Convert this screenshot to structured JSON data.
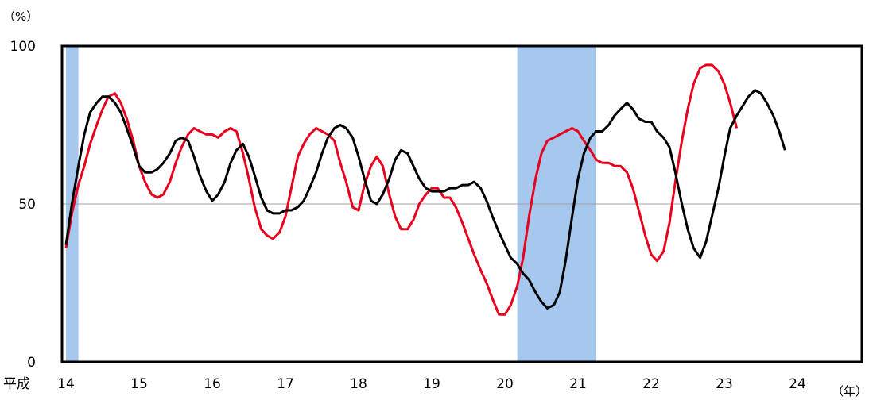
{
  "chart_data": {
    "type": "line",
    "title": "",
    "y_unit_label": "（%）",
    "x_unit_label": "（年）",
    "x_era_label": "平成",
    "xlabel": "",
    "ylabel": "",
    "ylim": [
      0,
      100
    ],
    "xlim": [
      14,
      25
    ],
    "y_ticks": [
      {
        "value": 0,
        "label": "0"
      },
      {
        "value": 50,
        "label": "50"
      },
      {
        "value": 100,
        "label": "100"
      }
    ],
    "x_ticks": [
      {
        "value": 14,
        "label": "14"
      },
      {
        "value": 15,
        "label": "15"
      },
      {
        "value": 16,
        "label": "16"
      },
      {
        "value": 17,
        "label": "17"
      },
      {
        "value": 18,
        "label": "18"
      },
      {
        "value": 19,
        "label": "19"
      },
      {
        "value": 20,
        "label": "20"
      },
      {
        "value": 21,
        "label": "21"
      },
      {
        "value": 22,
        "label": "22"
      },
      {
        "value": 23,
        "label": "23"
      },
      {
        "value": 24,
        "label": "24"
      }
    ],
    "grid": {
      "horizontal_at": [
        50
      ]
    },
    "legend": "none",
    "shaded_periods": [
      {
        "start": 14.0,
        "end": 14.17,
        "color": "#a6c8ee"
      },
      {
        "start": 20.17,
        "end": 21.25,
        "color": "#a6c8ee"
      }
    ],
    "series": [
      {
        "color": "#e8001c",
        "points": [
          [
            14.0,
            36
          ],
          [
            14.08,
            47
          ],
          [
            14.17,
            56
          ],
          [
            14.25,
            62
          ],
          [
            14.33,
            69
          ],
          [
            14.42,
            75
          ],
          [
            14.5,
            80
          ],
          [
            14.58,
            84
          ],
          [
            14.67,
            85
          ],
          [
            14.75,
            82
          ],
          [
            14.83,
            77
          ],
          [
            14.92,
            70
          ],
          [
            15.0,
            62
          ],
          [
            15.08,
            57
          ],
          [
            15.17,
            53
          ],
          [
            15.25,
            52
          ],
          [
            15.33,
            53
          ],
          [
            15.42,
            57
          ],
          [
            15.5,
            63
          ],
          [
            15.58,
            68
          ],
          [
            15.67,
            72
          ],
          [
            15.75,
            74
          ],
          [
            15.83,
            73
          ],
          [
            15.92,
            72
          ],
          [
            16.0,
            72
          ],
          [
            16.08,
            71
          ],
          [
            16.17,
            73
          ],
          [
            16.25,
            74
          ],
          [
            16.33,
            73
          ],
          [
            16.42,
            66
          ],
          [
            16.5,
            58
          ],
          [
            16.58,
            49
          ],
          [
            16.67,
            42
          ],
          [
            16.75,
            40
          ],
          [
            16.83,
            39
          ],
          [
            16.92,
            41
          ],
          [
            17.0,
            46
          ],
          [
            17.08,
            55
          ],
          [
            17.17,
            65
          ],
          [
            17.25,
            69
          ],
          [
            17.33,
            72
          ],
          [
            17.42,
            74
          ],
          [
            17.5,
            73
          ],
          [
            17.58,
            72
          ],
          [
            17.67,
            70
          ],
          [
            17.75,
            63
          ],
          [
            17.83,
            57
          ],
          [
            17.92,
            49
          ],
          [
            18.0,
            48
          ],
          [
            18.08,
            56
          ],
          [
            18.17,
            62
          ],
          [
            18.25,
            65
          ],
          [
            18.33,
            62
          ],
          [
            18.42,
            53
          ],
          [
            18.5,
            46
          ],
          [
            18.58,
            42
          ],
          [
            18.67,
            42
          ],
          [
            18.75,
            45
          ],
          [
            18.83,
            50
          ],
          [
            18.92,
            53
          ],
          [
            19.0,
            55
          ],
          [
            19.08,
            55
          ],
          [
            19.17,
            52
          ],
          [
            19.25,
            52
          ],
          [
            19.33,
            49
          ],
          [
            19.42,
            44
          ],
          [
            19.5,
            39
          ],
          [
            19.58,
            34
          ],
          [
            19.67,
            29
          ],
          [
            19.75,
            25
          ],
          [
            19.83,
            20
          ],
          [
            19.92,
            15
          ],
          [
            20.0,
            15
          ],
          [
            20.08,
            18
          ],
          [
            20.17,
            24
          ],
          [
            20.25,
            33
          ],
          [
            20.33,
            46
          ],
          [
            20.42,
            58
          ],
          [
            20.5,
            66
          ],
          [
            20.58,
            70
          ],
          [
            20.67,
            71
          ],
          [
            20.75,
            72
          ],
          [
            20.83,
            73
          ],
          [
            20.92,
            74
          ],
          [
            21.0,
            73
          ],
          [
            21.08,
            70
          ],
          [
            21.17,
            67
          ],
          [
            21.25,
            64
          ],
          [
            21.33,
            63
          ],
          [
            21.42,
            63
          ],
          [
            21.5,
            62
          ],
          [
            21.58,
            62
          ],
          [
            21.67,
            60
          ],
          [
            21.75,
            55
          ],
          [
            21.83,
            48
          ],
          [
            21.92,
            40
          ],
          [
            22.0,
            34
          ],
          [
            22.08,
            32
          ],
          [
            22.17,
            35
          ],
          [
            22.25,
            44
          ],
          [
            22.33,
            57
          ],
          [
            22.42,
            70
          ],
          [
            22.5,
            80
          ],
          [
            22.58,
            88
          ],
          [
            22.67,
            93
          ],
          [
            22.75,
            94
          ],
          [
            22.83,
            94
          ],
          [
            22.92,
            92
          ],
          [
            23.0,
            88
          ],
          [
            23.08,
            82
          ],
          [
            23.17,
            74
          ]
        ]
      },
      {
        "color": "#000000",
        "points": [
          [
            14.0,
            37
          ],
          [
            14.08,
            50
          ],
          [
            14.17,
            62
          ],
          [
            14.25,
            72
          ],
          [
            14.33,
            79
          ],
          [
            14.42,
            82
          ],
          [
            14.5,
            84
          ],
          [
            14.58,
            84
          ],
          [
            14.67,
            82
          ],
          [
            14.75,
            79
          ],
          [
            14.83,
            74
          ],
          [
            14.92,
            68
          ],
          [
            15.0,
            62
          ],
          [
            15.08,
            60
          ],
          [
            15.17,
            60
          ],
          [
            15.25,
            61
          ],
          [
            15.33,
            63
          ],
          [
            15.42,
            66
          ],
          [
            15.5,
            70
          ],
          [
            15.58,
            71
          ],
          [
            15.67,
            70
          ],
          [
            15.75,
            65
          ],
          [
            15.83,
            59
          ],
          [
            15.92,
            54
          ],
          [
            16.0,
            51
          ],
          [
            16.08,
            53
          ],
          [
            16.17,
            57
          ],
          [
            16.25,
            63
          ],
          [
            16.33,
            67
          ],
          [
            16.42,
            69
          ],
          [
            16.5,
            65
          ],
          [
            16.58,
            59
          ],
          [
            16.67,
            52
          ],
          [
            16.75,
            48
          ],
          [
            16.83,
            47
          ],
          [
            16.92,
            47
          ],
          [
            17.0,
            48
          ],
          [
            17.08,
            48
          ],
          [
            17.17,
            49
          ],
          [
            17.25,
            51
          ],
          [
            17.33,
            55
          ],
          [
            17.42,
            60
          ],
          [
            17.5,
            66
          ],
          [
            17.58,
            71
          ],
          [
            17.67,
            74
          ],
          [
            17.75,
            75
          ],
          [
            17.83,
            74
          ],
          [
            17.92,
            71
          ],
          [
            18.0,
            65
          ],
          [
            18.08,
            58
          ],
          [
            18.17,
            51
          ],
          [
            18.25,
            50
          ],
          [
            18.33,
            53
          ],
          [
            18.42,
            58
          ],
          [
            18.5,
            64
          ],
          [
            18.58,
            67
          ],
          [
            18.67,
            66
          ],
          [
            18.75,
            62
          ],
          [
            18.83,
            58
          ],
          [
            18.92,
            55
          ],
          [
            19.0,
            54
          ],
          [
            19.08,
            54
          ],
          [
            19.17,
            54
          ],
          [
            19.25,
            55
          ],
          [
            19.33,
            55
          ],
          [
            19.42,
            56
          ],
          [
            19.5,
            56
          ],
          [
            19.58,
            57
          ],
          [
            19.67,
            55
          ],
          [
            19.75,
            51
          ],
          [
            19.83,
            46
          ],
          [
            19.92,
            41
          ],
          [
            20.0,
            37
          ],
          [
            20.08,
            33
          ],
          [
            20.17,
            31
          ],
          [
            20.25,
            28
          ],
          [
            20.33,
            26
          ],
          [
            20.42,
            22
          ],
          [
            20.5,
            19
          ],
          [
            20.58,
            17
          ],
          [
            20.67,
            18
          ],
          [
            20.75,
            22
          ],
          [
            20.83,
            32
          ],
          [
            20.92,
            46
          ],
          [
            21.0,
            58
          ],
          [
            21.08,
            66
          ],
          [
            21.17,
            71
          ],
          [
            21.25,
            73
          ],
          [
            21.33,
            73
          ],
          [
            21.42,
            75
          ],
          [
            21.5,
            78
          ],
          [
            21.58,
            80
          ],
          [
            21.67,
            82
          ],
          [
            21.75,
            80
          ],
          [
            21.83,
            77
          ],
          [
            21.92,
            76
          ],
          [
            22.0,
            76
          ],
          [
            22.08,
            73
          ],
          [
            22.17,
            71
          ],
          [
            22.25,
            68
          ],
          [
            22.33,
            60
          ],
          [
            22.42,
            50
          ],
          [
            22.5,
            42
          ],
          [
            22.58,
            36
          ],
          [
            22.67,
            33
          ],
          [
            22.75,
            38
          ],
          [
            22.83,
            46
          ],
          [
            22.92,
            55
          ],
          [
            23.0,
            65
          ],
          [
            23.08,
            74
          ],
          [
            23.17,
            78
          ],
          [
            23.25,
            81
          ],
          [
            23.33,
            84
          ],
          [
            23.42,
            86
          ],
          [
            23.5,
            85
          ],
          [
            23.58,
            82
          ],
          [
            23.67,
            78
          ],
          [
            23.75,
            73
          ],
          [
            23.83,
            67
          ]
        ]
      }
    ]
  }
}
